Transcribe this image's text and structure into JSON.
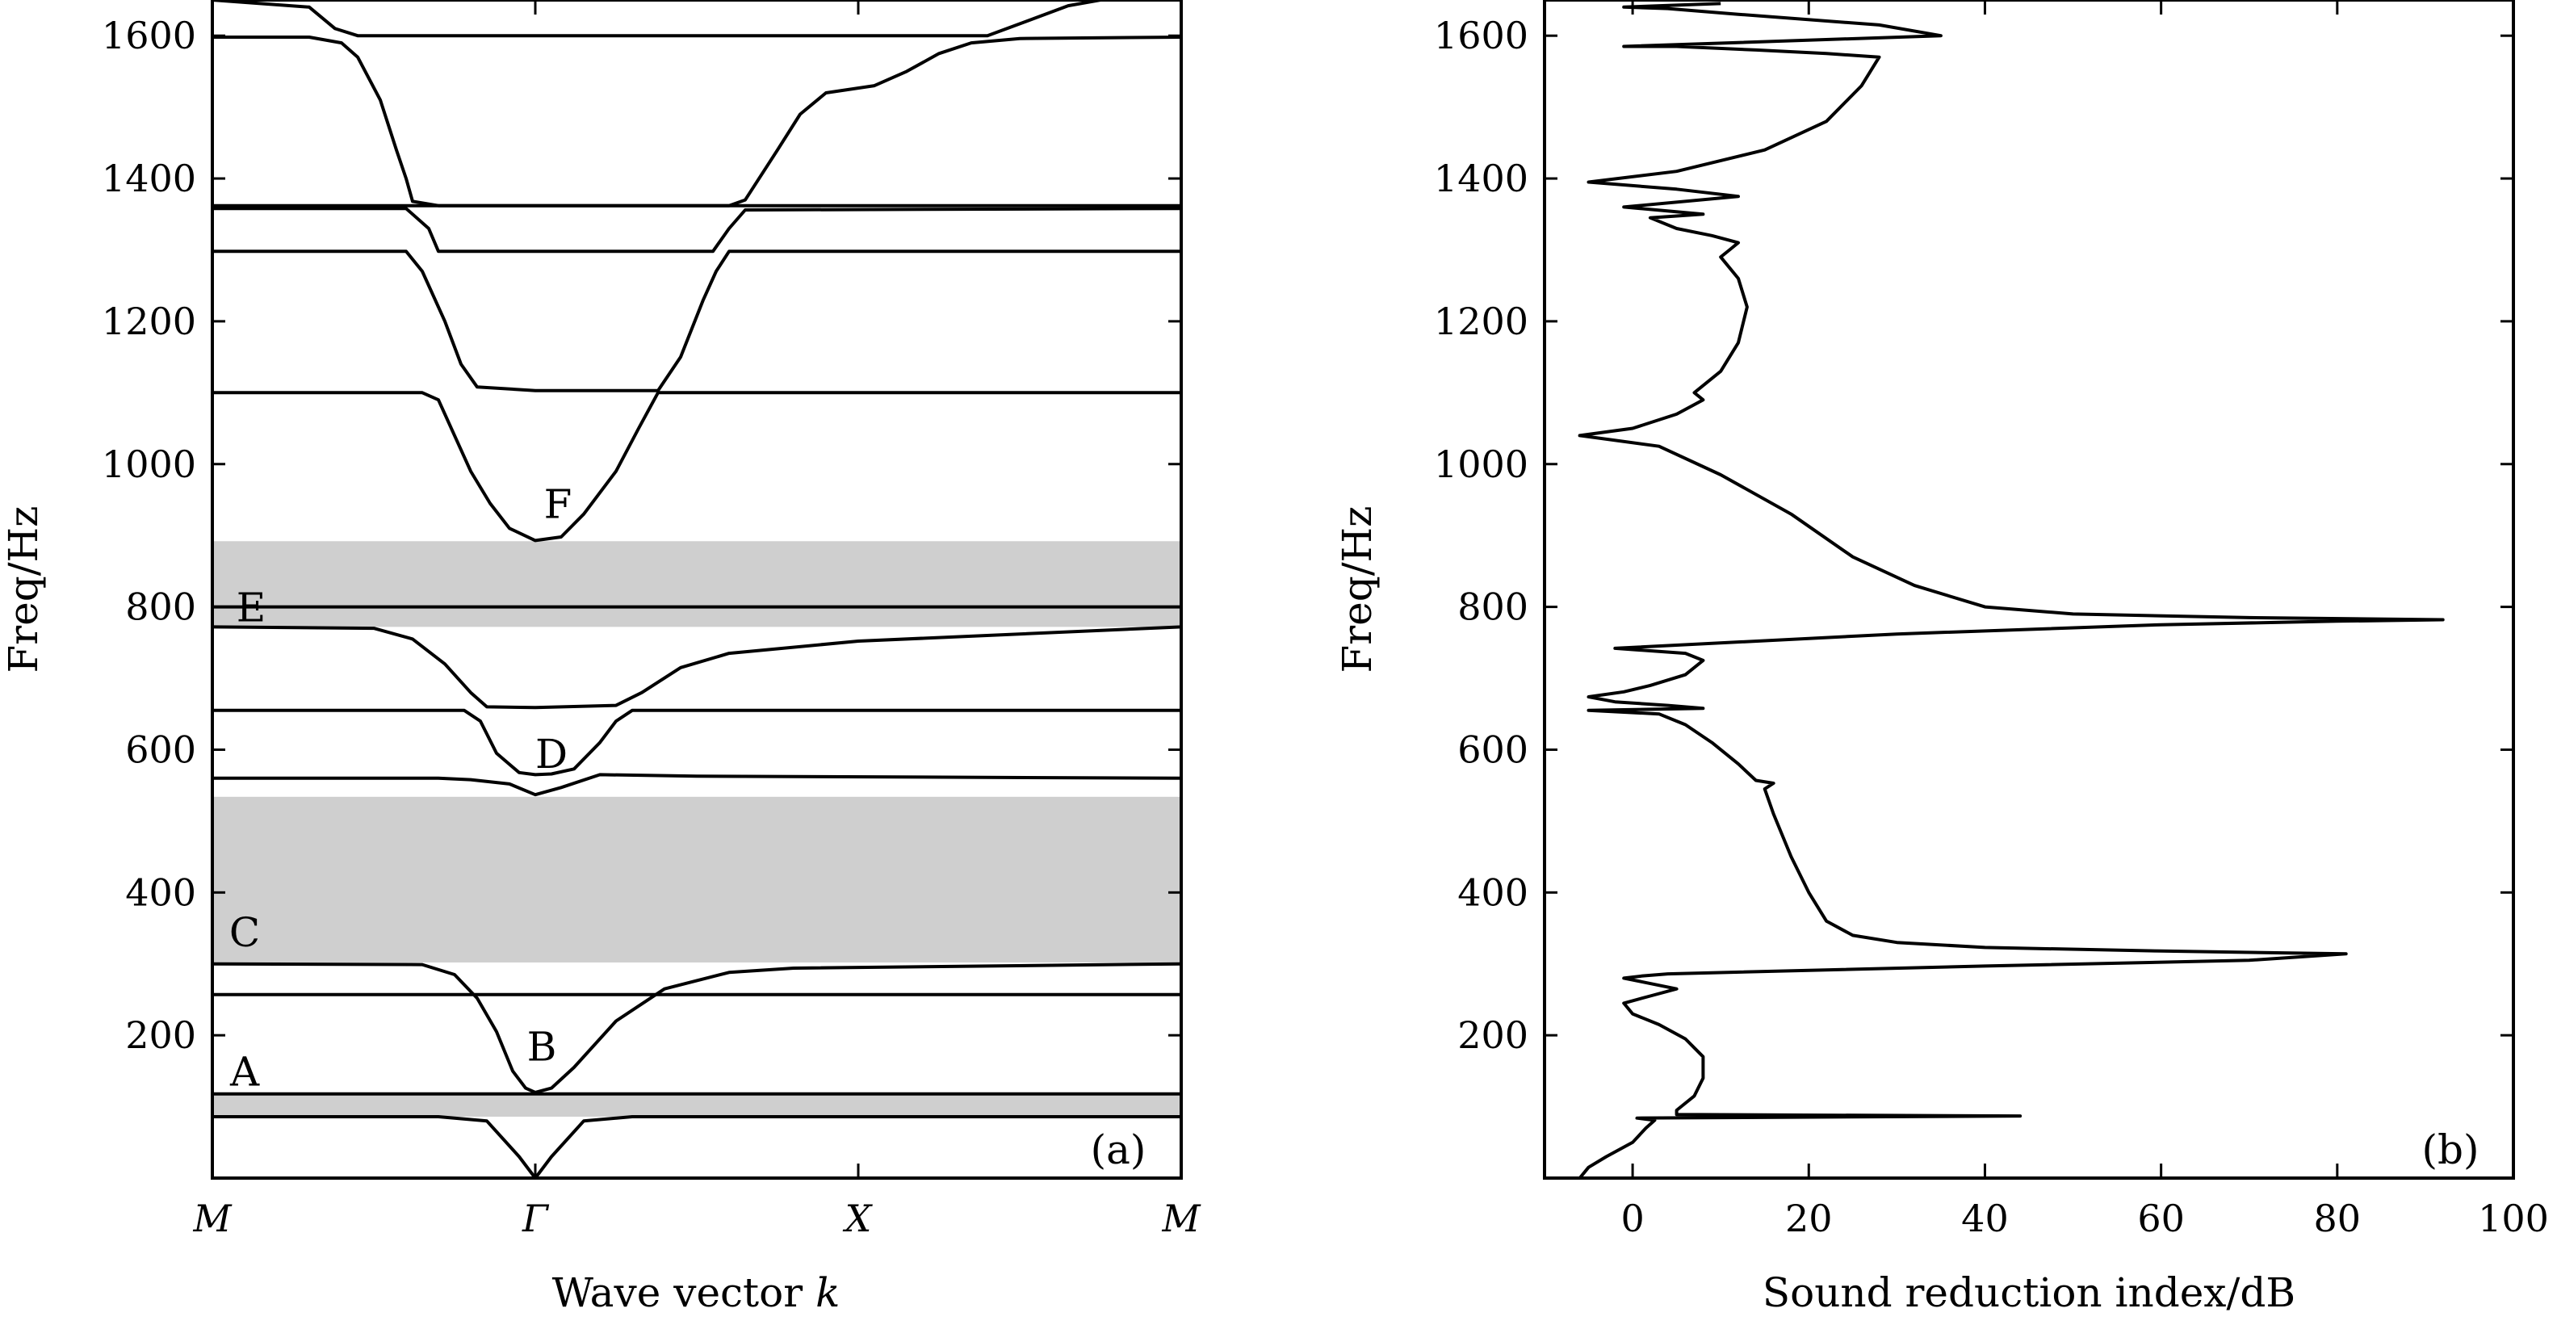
{
  "chart_data": [
    {
      "type": "line",
      "panel_label": "(a)",
      "xlabel": "Wave vector",
      "xlabel_symbol": "k",
      "ylabel": "Freq/Hz",
      "x_ticks": [
        "M",
        "Γ",
        "X",
        "M"
      ],
      "y_ticks": [
        200,
        400,
        600,
        800,
        1000,
        1200,
        1400,
        1600
      ],
      "ylim": [
        0,
        1650
      ],
      "grid": false,
      "band_gaps": [
        {
          "from": 86,
          "to": 118
        },
        {
          "from": 302,
          "to": 534
        },
        {
          "from": 772,
          "to": 892
        }
      ],
      "annotations": [
        {
          "text": "A",
          "x": 0.1,
          "y": 150
        },
        {
          "text": "B",
          "x": 1.02,
          "y": 185
        },
        {
          "text": "C",
          "x": 0.1,
          "y": 345
        },
        {
          "text": "D",
          "x": 1.05,
          "y": 595
        },
        {
          "text": "E",
          "x": 0.12,
          "y": 800
        },
        {
          "text": "F",
          "x": 1.07,
          "y": 945
        }
      ],
      "series": [
        {
          "values": [
            [
              0,
              86
            ],
            [
              0.7,
              86
            ],
            [
              0.85,
              80
            ],
            [
              0.95,
              30
            ],
            [
              1,
              0
            ],
            [
              1.05,
              30
            ],
            [
              1.15,
              80
            ],
            [
              1.3,
              86
            ],
            [
              3,
              86
            ]
          ]
        },
        {
          "values": [
            [
              0,
              118
            ],
            [
              3,
              118
            ]
          ]
        },
        {
          "values": [
            [
              0,
              257
            ],
            [
              3,
              257
            ]
          ]
        },
        {
          "values": [
            [
              0,
              300
            ],
            [
              0.65,
              299
            ],
            [
              0.75,
              285
            ],
            [
              0.82,
              252
            ],
            [
              0.88,
              205
            ],
            [
              0.93,
              150
            ],
            [
              0.97,
              126
            ],
            [
              1,
              120
            ],
            [
              1.05,
              126
            ],
            [
              1.12,
              155
            ],
            [
              1.25,
              220
            ],
            [
              1.4,
              265
            ],
            [
              1.6,
              288
            ],
            [
              1.8,
              294
            ],
            [
              3,
              300
            ]
          ]
        },
        {
          "values": [
            [
              0,
              560
            ],
            [
              0.7,
              560
            ],
            [
              0.8,
              558
            ],
            [
              0.92,
              552
            ],
            [
              1,
              537
            ],
            [
              1.08,
              547
            ],
            [
              1.2,
              565
            ],
            [
              1.5,
              563
            ],
            [
              3,
              560
            ]
          ]
        },
        {
          "values": [
            [
              0,
              655
            ],
            [
              0.78,
              655
            ],
            [
              0.83,
              640
            ],
            [
              0.88,
              595
            ],
            [
              0.95,
              568
            ],
            [
              1,
              565
            ],
            [
              1.05,
              566
            ],
            [
              1.12,
              573
            ],
            [
              1.2,
              610
            ],
            [
              1.25,
              640
            ],
            [
              1.3,
              655
            ],
            [
              3,
              655
            ]
          ]
        },
        {
          "values": [
            [
              0,
              772
            ],
            [
              0.5,
              770
            ],
            [
              0.62,
              755
            ],
            [
              0.72,
              720
            ],
            [
              0.8,
              680
            ],
            [
              0.85,
              660
            ],
            [
              1,
              659
            ],
            [
              1.25,
              662
            ],
            [
              1.33,
              680
            ],
            [
              1.45,
              715
            ],
            [
              1.6,
              735
            ],
            [
              2,
              752
            ],
            [
              3,
              772
            ]
          ]
        },
        {
          "values": [
            [
              0,
              800
            ],
            [
              3,
              800
            ]
          ]
        },
        {
          "values": [
            [
              0,
              1100
            ],
            [
              0.65,
              1100
            ],
            [
              0.7,
              1090
            ],
            [
              0.75,
              1040
            ],
            [
              0.8,
              990
            ],
            [
              0.86,
              945
            ],
            [
              0.92,
              910
            ],
            [
              1,
              893
            ],
            [
              1.08,
              898
            ],
            [
              1.15,
              930
            ],
            [
              1.25,
              990
            ],
            [
              1.32,
              1050
            ],
            [
              1.38,
              1100
            ],
            [
              3,
              1100
            ]
          ]
        },
        {
          "values": [
            [
              0,
              1298
            ],
            [
              0.6,
              1298
            ],
            [
              0.65,
              1270
            ],
            [
              0.72,
              1200
            ],
            [
              0.77,
              1140
            ],
            [
              0.82,
              1108
            ],
            [
              1,
              1103
            ],
            [
              1.38,
              1103
            ],
            [
              1.45,
              1150
            ],
            [
              1.52,
              1230
            ],
            [
              1.56,
              1270
            ],
            [
              1.6,
              1298
            ],
            [
              3,
              1298
            ]
          ]
        },
        {
          "values": [
            [
              0,
              1358
            ],
            [
              0.6,
              1358
            ],
            [
              0.67,
              1330
            ],
            [
              0.7,
              1298
            ],
            [
              1.55,
              1298
            ],
            [
              1.6,
              1330
            ],
            [
              1.65,
              1356
            ],
            [
              3,
              1358
            ]
          ]
        },
        {
          "values": [
            [
              0,
              1362
            ],
            [
              3,
              1362
            ]
          ]
        },
        {
          "values": [
            [
              0,
              1598
            ],
            [
              0.3,
              1598
            ],
            [
              0.4,
              1590
            ],
            [
              0.45,
              1570
            ],
            [
              0.52,
              1510
            ],
            [
              0.57,
              1440
            ],
            [
              0.6,
              1400
            ],
            [
              0.62,
              1368
            ],
            [
              0.7,
              1362
            ],
            [
              1.6,
              1362
            ],
            [
              1.65,
              1370
            ],
            [
              1.75,
              1440
            ],
            [
              1.82,
              1490
            ],
            [
              1.9,
              1520
            ],
            [
              2.05,
              1530
            ],
            [
              2.15,
              1550
            ],
            [
              2.25,
              1575
            ],
            [
              2.35,
              1590
            ],
            [
              2.5,
              1596
            ],
            [
              3,
              1598
            ]
          ]
        },
        {
          "values": [
            [
              0,
              1650
            ],
            [
              0.3,
              1640
            ],
            [
              0.38,
              1610
            ],
            [
              0.45,
              1600
            ],
            [
              2.4,
              1600
            ],
            [
              2.52,
              1620
            ],
            [
              2.65,
              1642
            ],
            [
              2.75,
              1650
            ]
          ]
        }
      ]
    },
    {
      "type": "line",
      "panel_label": "(b)",
      "xlabel": "Sound reduction index/dB",
      "ylabel": "Freq/Hz",
      "x_ticks": [
        0,
        20,
        40,
        60,
        80,
        100
      ],
      "y_ticks": [
        200,
        400,
        600,
        800,
        1000,
        1200,
        1400,
        1600
      ],
      "xlim": [
        -10,
        100
      ],
      "ylim": [
        0,
        1650
      ],
      "grid": false,
      "series": [
        {
          "values": [
            [
              -6,
              0
            ],
            [
              -5,
              15
            ],
            [
              -3,
              30
            ],
            [
              0,
              50
            ],
            [
              1.5,
              70
            ],
            [
              2.5,
              81
            ],
            [
              0.5,
              84
            ],
            [
              44,
              87
            ],
            [
              5,
              89
            ],
            [
              5,
              95
            ],
            [
              7,
              115
            ],
            [
              8,
              140
            ],
            [
              8,
              170
            ],
            [
              6,
              195
            ],
            [
              3,
              215
            ],
            [
              0,
              230
            ],
            [
              -1,
              245
            ],
            [
              2,
              255
            ],
            [
              5,
              265
            ],
            [
              1,
              275
            ],
            [
              -1,
              280
            ],
            [
              1,
              283
            ],
            [
              4,
              286
            ],
            [
              40,
              297
            ],
            [
              70,
              305
            ],
            [
              81,
              314
            ],
            [
              60,
              318
            ],
            [
              40,
              323
            ],
            [
              30,
              330
            ],
            [
              25,
              340
            ],
            [
              22,
              360
            ],
            [
              20,
              400
            ],
            [
              18,
              450
            ],
            [
              16,
              510
            ],
            [
              15,
              545
            ],
            [
              16,
              553
            ],
            [
              14,
              557
            ],
            [
              12,
              580
            ],
            [
              9,
              610
            ],
            [
              6,
              635
            ],
            [
              3,
              650
            ],
            [
              -5,
              655
            ],
            [
              8,
              658
            ],
            [
              4,
              662
            ],
            [
              -2,
              667
            ],
            [
              -5,
              674
            ],
            [
              -1,
              681
            ],
            [
              2,
              690
            ],
            [
              6,
              705
            ],
            [
              8,
              725
            ],
            [
              6,
              735
            ],
            [
              -2,
              742
            ],
            [
              30,
              762
            ],
            [
              60,
              775
            ],
            [
              80,
              780
            ],
            [
              92,
              782
            ],
            [
              70,
              785
            ],
            [
              50,
              790
            ],
            [
              40,
              800
            ],
            [
              32,
              830
            ],
            [
              25,
              870
            ],
            [
              18,
              930
            ],
            [
              10,
              985
            ],
            [
              3,
              1025
            ],
            [
              -6,
              1040
            ],
            [
              0,
              1050
            ],
            [
              5,
              1070
            ],
            [
              8,
              1090
            ],
            [
              7,
              1100
            ],
            [
              10,
              1130
            ],
            [
              12,
              1170
            ],
            [
              13,
              1220
            ],
            [
              12,
              1260
            ],
            [
              10,
              1290
            ],
            [
              11,
              1300
            ],
            [
              12,
              1310
            ],
            [
              9,
              1320
            ],
            [
              5,
              1330
            ],
            [
              2,
              1345
            ],
            [
              8,
              1350
            ],
            [
              -1,
              1360
            ],
            [
              12,
              1375
            ],
            [
              5,
              1385
            ],
            [
              -5,
              1395
            ],
            [
              5,
              1410
            ],
            [
              15,
              1440
            ],
            [
              22,
              1480
            ],
            [
              26,
              1530
            ],
            [
              28,
              1570
            ],
            [
              22,
              1575
            ],
            [
              14,
              1580
            ],
            [
              5,
              1585
            ],
            [
              -1,
              1585
            ],
            [
              35,
              1600
            ],
            [
              28,
              1615
            ],
            [
              12,
              1630
            ],
            [
              4,
              1638
            ],
            [
              -1,
              1640
            ],
            [
              10,
              1645
            ]
          ]
        }
      ]
    }
  ]
}
